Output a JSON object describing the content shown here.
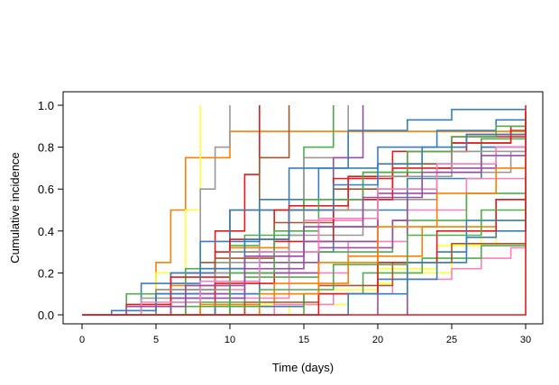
{
  "chart_data": {
    "type": "line",
    "subtype": "step",
    "title": "",
    "xlabel": "Time (days)",
    "ylabel": "Cumulative incidence",
    "xlim": [
      0,
      30
    ],
    "ylim": [
      0,
      1
    ],
    "x_ticks": [
      0,
      5,
      10,
      15,
      20,
      25,
      30
    ],
    "y_ticks": [
      0.0,
      0.2,
      0.4,
      0.6,
      0.8,
      1.0
    ],
    "x_tick_labels": [
      "0",
      "5",
      "10",
      "15",
      "20",
      "25",
      "30"
    ],
    "y_tick_labels": [
      "0.0",
      "0.2",
      "0.4",
      "0.6",
      "0.8",
      "1.0"
    ],
    "grid": false,
    "legend": "none",
    "palette": [
      "#e41a1c",
      "#377eb8",
      "#4daf4a",
      "#984ea3",
      "#ff7f00",
      "#ffff33",
      "#a65628",
      "#f781bf",
      "#999999"
    ],
    "series": [
      {
        "color": "#ff7f00",
        "x": [
          0,
          5,
          6,
          7,
          8,
          10,
          30
        ],
        "y": [
          0,
          0.25,
          0.5,
          0.75,
          0.75,
          0.875,
          0.875
        ]
      },
      {
        "color": "#ffff33",
        "x": [
          0,
          5,
          7,
          8,
          8
        ],
        "y": [
          0,
          0.2,
          0.5,
          0.6,
          1.0
        ]
      },
      {
        "color": "#999999",
        "x": [
          0,
          6,
          8,
          9,
          10,
          10
        ],
        "y": [
          0,
          0.2,
          0.6,
          0.8,
          0.8,
          1.0
        ]
      },
      {
        "color": "#e41a1c",
        "x": [
          0,
          7,
          9,
          11,
          12,
          12
        ],
        "y": [
          0,
          0.2,
          0.4,
          0.67,
          0.8,
          1.0
        ]
      },
      {
        "color": "#a65628",
        "x": [
          0,
          8,
          10,
          12,
          14,
          14
        ],
        "y": [
          0,
          0.25,
          0.5,
          0.75,
          0.9,
          1.0
        ]
      },
      {
        "color": "#4daf4a",
        "x": [
          0,
          10,
          12,
          15,
          17,
          17
        ],
        "y": [
          0,
          0.33,
          0.5,
          0.8,
          0.9,
          1.0
        ]
      },
      {
        "color": "#999999",
        "x": [
          0,
          9,
          12,
          15,
          18,
          18
        ],
        "y": [
          0,
          0.25,
          0.5,
          0.75,
          0.9,
          1.0
        ]
      },
      {
        "color": "#984ea3",
        "x": [
          0,
          11,
          14,
          17,
          19,
          19
        ],
        "y": [
          0,
          0.2,
          0.5,
          0.75,
          0.9,
          1.0
        ]
      },
      {
        "color": "#377eb8",
        "x": [
          0,
          6,
          10,
          14,
          18,
          22,
          25,
          30
        ],
        "y": [
          0,
          0.2,
          0.5,
          0.7,
          0.88,
          0.93,
          0.98,
          0.98
        ]
      },
      {
        "color": "#377eb8",
        "x": [
          0,
          4,
          8,
          12,
          16,
          20,
          24,
          28,
          30
        ],
        "y": [
          0,
          0.15,
          0.35,
          0.55,
          0.7,
          0.8,
          0.88,
          0.93,
          0.93
        ]
      },
      {
        "color": "#e41a1c",
        "x": [
          0,
          5,
          9,
          13,
          17,
          21,
          25,
          30
        ],
        "y": [
          0,
          0.1,
          0.3,
          0.5,
          0.65,
          0.78,
          0.85,
          0.92
        ]
      },
      {
        "color": "#f781bf",
        "x": [
          0,
          7,
          11,
          15,
          19,
          23,
          27,
          30
        ],
        "y": [
          0,
          0.12,
          0.28,
          0.45,
          0.6,
          0.72,
          0.8,
          0.87
        ]
      },
      {
        "color": "#4daf4a",
        "x": [
          0,
          3,
          7,
          11,
          15,
          19,
          23,
          27,
          30
        ],
        "y": [
          0,
          0.1,
          0.22,
          0.38,
          0.55,
          0.68,
          0.78,
          0.84,
          0.89
        ]
      },
      {
        "color": "#ff7f00",
        "x": [
          0,
          6,
          10,
          14,
          18,
          22,
          26,
          30
        ],
        "y": [
          0,
          0.14,
          0.32,
          0.5,
          0.66,
          0.78,
          0.86,
          0.9
        ]
      },
      {
        "color": "#984ea3",
        "x": [
          0,
          8,
          12,
          16,
          20,
          24,
          28,
          30
        ],
        "y": [
          0,
          0.1,
          0.25,
          0.42,
          0.58,
          0.7,
          0.8,
          0.85
        ]
      },
      {
        "color": "#a65628",
        "x": [
          0,
          5,
          9,
          13,
          17,
          21,
          25,
          29,
          30
        ],
        "y": [
          0,
          0.12,
          0.27,
          0.44,
          0.6,
          0.72,
          0.82,
          0.88,
          0.88
        ]
      },
      {
        "color": "#999999",
        "x": [
          0,
          4,
          9,
          14,
          19,
          24,
          29,
          30
        ],
        "y": [
          0,
          0.08,
          0.2,
          0.38,
          0.55,
          0.68,
          0.78,
          0.78
        ]
      },
      {
        "color": "#377eb8",
        "x": [
          0,
          7,
          12,
          17,
          22,
          27,
          30
        ],
        "y": [
          0,
          0.1,
          0.3,
          0.5,
          0.65,
          0.8,
          0.84
        ]
      },
      {
        "color": "#e41a1c",
        "x": [
          0,
          9,
          13,
          17,
          21,
          25,
          29,
          30
        ],
        "y": [
          0,
          0.15,
          0.35,
          0.55,
          0.7,
          0.82,
          0.9,
          0.97
        ]
      },
      {
        "color": "#f781bf",
        "x": [
          0,
          10,
          14,
          18,
          22,
          26,
          30
        ],
        "y": [
          0,
          0.08,
          0.2,
          0.35,
          0.5,
          0.65,
          0.7
        ]
      },
      {
        "color": "#4daf4a",
        "x": [
          0,
          6,
          11,
          16,
          21,
          26,
          30
        ],
        "y": [
          0,
          0.06,
          0.18,
          0.3,
          0.45,
          0.58,
          0.66
        ]
      },
      {
        "color": "#ff7f00",
        "x": [
          0,
          8,
          13,
          18,
          23,
          28,
          30
        ],
        "y": [
          0,
          0.05,
          0.15,
          0.28,
          0.42,
          0.55,
          0.6
        ]
      },
      {
        "color": "#984ea3",
        "x": [
          0,
          5,
          10,
          15,
          20,
          20
        ],
        "y": [
          0,
          0.1,
          0.22,
          0.35,
          0.45,
          0.0
        ]
      },
      {
        "color": "#984ea3",
        "x": [
          0,
          6,
          11,
          16,
          21,
          22,
          22
        ],
        "y": [
          0,
          0.08,
          0.2,
          0.32,
          0.45,
          0.55,
          0.0
        ]
      },
      {
        "color": "#ffff33",
        "x": [
          0,
          12,
          16,
          20,
          24,
          28,
          30
        ],
        "y": [
          0,
          0.05,
          0.12,
          0.22,
          0.33,
          0.45,
          0.5
        ]
      },
      {
        "color": "#ffff33",
        "x": [
          0,
          14,
          18,
          20,
          21,
          21,
          25,
          27,
          30
        ],
        "y": [
          0,
          0.05,
          0.1,
          0.15,
          0.2,
          0.2,
          0.33,
          0.45,
          0.5
        ]
      },
      {
        "color": "#f781bf",
        "x": [
          0,
          13,
          17,
          21,
          25,
          27,
          29,
          30
        ],
        "y": [
          0,
          0.05,
          0.1,
          0.17,
          0.22,
          0.27,
          0.32,
          0.32
        ]
      },
      {
        "color": "#377eb8",
        "x": [
          0,
          9,
          15,
          20,
          24,
          26,
          28,
          30
        ],
        "y": [
          0,
          0.04,
          0.1,
          0.17,
          0.3,
          0.37,
          0.4,
          0.45
        ]
      },
      {
        "color": "#4daf4a",
        "x": [
          0,
          15,
          19,
          23,
          27,
          30
        ],
        "y": [
          0,
          0.1,
          0.2,
          0.27,
          0.33,
          0.33
        ]
      },
      {
        "color": "#a65628",
        "x": [
          0,
          11,
          16,
          21,
          25,
          30
        ],
        "y": [
          0,
          0.06,
          0.14,
          0.25,
          0.34,
          0.34
        ]
      },
      {
        "color": "#e41a1c",
        "x": [
          0,
          3,
          6,
          10,
          14,
          18,
          22,
          26,
          30
        ],
        "y": [
          0,
          0.05,
          0.18,
          0.36,
          0.52,
          0.66,
          0.78,
          0.86,
          0.9
        ]
      },
      {
        "color": "#999999",
        "x": [
          0,
          5,
          10,
          15,
          20,
          25,
          30
        ],
        "y": [
          0,
          0.12,
          0.3,
          0.5,
          0.66,
          0.78,
          0.84
        ]
      },
      {
        "color": "#4daf4a",
        "x": [
          0,
          10,
          13,
          16,
          19,
          22,
          25,
          28,
          30
        ],
        "y": [
          0,
          0.2,
          0.4,
          0.55,
          0.68,
          0.78,
          0.85,
          0.9,
          0.95
        ]
      },
      {
        "color": "#377eb8",
        "x": [
          0,
          2,
          5,
          8,
          11,
          14,
          17,
          20,
          23,
          26,
          30
        ],
        "y": [
          0,
          0.02,
          0.1,
          0.22,
          0.36,
          0.5,
          0.62,
          0.72,
          0.8,
          0.86,
          0.9
        ]
      },
      {
        "color": "#f781bf",
        "x": [
          0,
          4,
          8,
          12,
          16,
          20,
          24,
          28,
          30
        ],
        "y": [
          0,
          0.06,
          0.16,
          0.3,
          0.46,
          0.6,
          0.72,
          0.8,
          0.84
        ]
      },
      {
        "color": "#e41a1c",
        "x": [
          0,
          16,
          20,
          24,
          28,
          30
        ],
        "y": [
          0,
          0.1,
          0.25,
          0.4,
          0.55,
          0.55
        ]
      },
      {
        "color": "#ff7f00",
        "x": [
          0,
          12,
          16,
          20,
          24,
          28,
          30
        ],
        "y": [
          0,
          0.1,
          0.25,
          0.42,
          0.58,
          0.7,
          0.75
        ]
      },
      {
        "color": "#377eb8",
        "x": [
          0,
          18,
          22,
          26,
          30
        ],
        "y": [
          0,
          0.1,
          0.25,
          0.45,
          0.57
        ]
      },
      {
        "color": "#4daf4a",
        "x": [
          0,
          7,
          12,
          17,
          22,
          27,
          30
        ],
        "y": [
          0,
          0.04,
          0.12,
          0.24,
          0.38,
          0.5,
          0.53
        ]
      },
      {
        "color": "#984ea3",
        "x": [
          0,
          3,
          7,
          11,
          15,
          19,
          23,
          27,
          30
        ],
        "y": [
          0,
          0.04,
          0.14,
          0.28,
          0.42,
          0.56,
          0.68,
          0.76,
          0.8
        ]
      },
      {
        "color": "#e41a1c",
        "x": [
          0,
          25,
          30,
          30
        ],
        "y": [
          0,
          0.0,
          0.0,
          1.0
        ]
      }
    ]
  }
}
